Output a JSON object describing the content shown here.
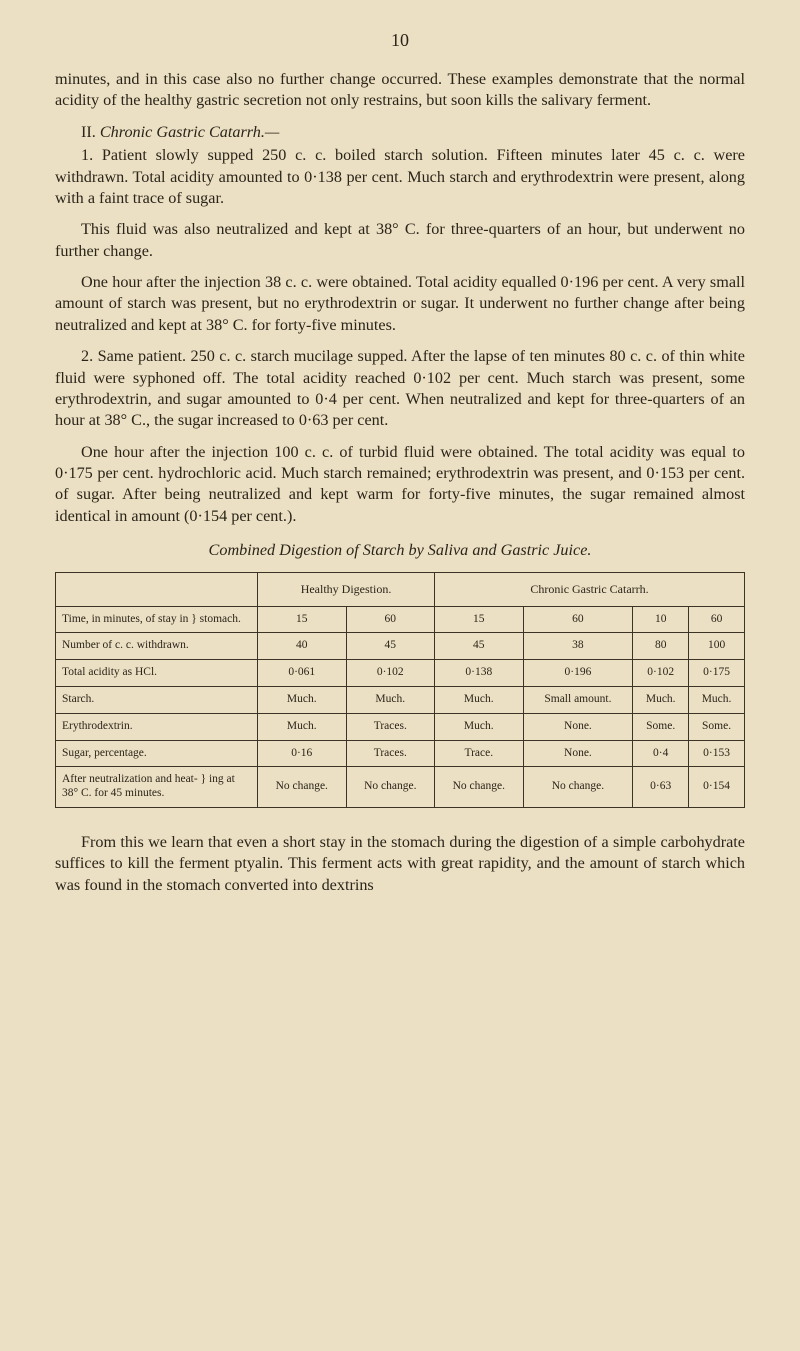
{
  "page_number": "10",
  "paragraphs": {
    "p1": "minutes, and in this case also no further change occurred. These examples demonstrate that the normal acidity of the healthy gastric secretion not only restrains, but soon kills the salivary ferment.",
    "section_lead": "II. ",
    "section_title": "Chronic Gastric Catarrh.—",
    "p2": "1. Patient slowly supped 250 c. c. boiled starch solution. Fifteen minutes later 45 c. c. were withdrawn. Total acidity amounted to 0·138 per cent. Much starch and erythrodextrin were present, along with a faint trace of sugar.",
    "p3": "This fluid was also neutralized and kept at 38° C. for three-quarters of an hour, but underwent no further change.",
    "p4": "One hour after the injection 38 c. c. were obtained. Total acidity equalled 0·196 per cent. A very small amount of starch was present, but no erythrodextrin or sugar. It underwent no further change after being neutralized and kept at 38° C. for forty-five minutes.",
    "p5": "2. Same patient. 250 c. c. starch mucilage supped. After the lapse of ten minutes 80 c. c. of thin white fluid were syphoned off. The total acidity reached 0·102 per cent. Much starch was present, some erythrodextrin, and sugar amounted to 0·4 per cent. When neutralized and kept for three-quarters of an hour at 38° C., the sugar increased to 0·63 per cent.",
    "p6": "One hour after the injection 100 c. c. of turbid fluid were obtained. The total acidity was equal to 0·175 per cent. hydrochloric acid. Much starch remained; erythrodextrin was present, and 0·153 per cent. of sugar. After being neutralized and kept warm for forty-five minutes, the sugar remained almost identical in amount (0·154 per cent.).",
    "table_title": "Combined Digestion of Starch by Saliva and Gastric Juice.",
    "p7": "From this we learn that even a short stay in the stomach during the digestion of a simple carbohydrate suffices to kill the ferment ptyalin. This ferment acts with great rapidity, and the amount of starch which was found in the stomach converted into dextrins"
  },
  "table": {
    "header": {
      "empty": "",
      "healthy": "Healthy Digestion.",
      "chronic": "Chronic Gastric Catarrh."
    },
    "rows": [
      {
        "label": "Time, in minutes, of stay in } stomach.",
        "c1": "15",
        "c2": "60",
        "c3": "15",
        "c4": "60",
        "c5": "10",
        "c6": "60"
      },
      {
        "label": "Number of c. c. withdrawn.",
        "c1": "40",
        "c2": "45",
        "c3": "45",
        "c4": "38",
        "c5": "80",
        "c6": "100"
      },
      {
        "label": "Total acidity as HCl.",
        "c1": "0·061",
        "c2": "0·102",
        "c3": "0·138",
        "c4": "0·196",
        "c5": "0·102",
        "c6": "0·175"
      },
      {
        "label": "Starch.",
        "c1": "Much.",
        "c2": "Much.",
        "c3": "Much.",
        "c4": "Small amount.",
        "c5": "Much.",
        "c6": "Much."
      },
      {
        "label": "Erythrodextrin.",
        "c1": "Much.",
        "c2": "Traces.",
        "c3": "Much.",
        "c4": "None.",
        "c5": "Some.",
        "c6": "Some."
      },
      {
        "label": "Sugar, percentage.",
        "c1": "0·16",
        "c2": "Traces.",
        "c3": "Trace.",
        "c4": "None.",
        "c5": "0·4",
        "c6": "0·153"
      },
      {
        "label": "After neutralization and heat- } ing at 38° C. for 45 minutes.",
        "c1": "No change.",
        "c2": "No change.",
        "c3": "No change.",
        "c4": "No change.",
        "c5": "0·63",
        "c6": "0·154"
      }
    ]
  }
}
